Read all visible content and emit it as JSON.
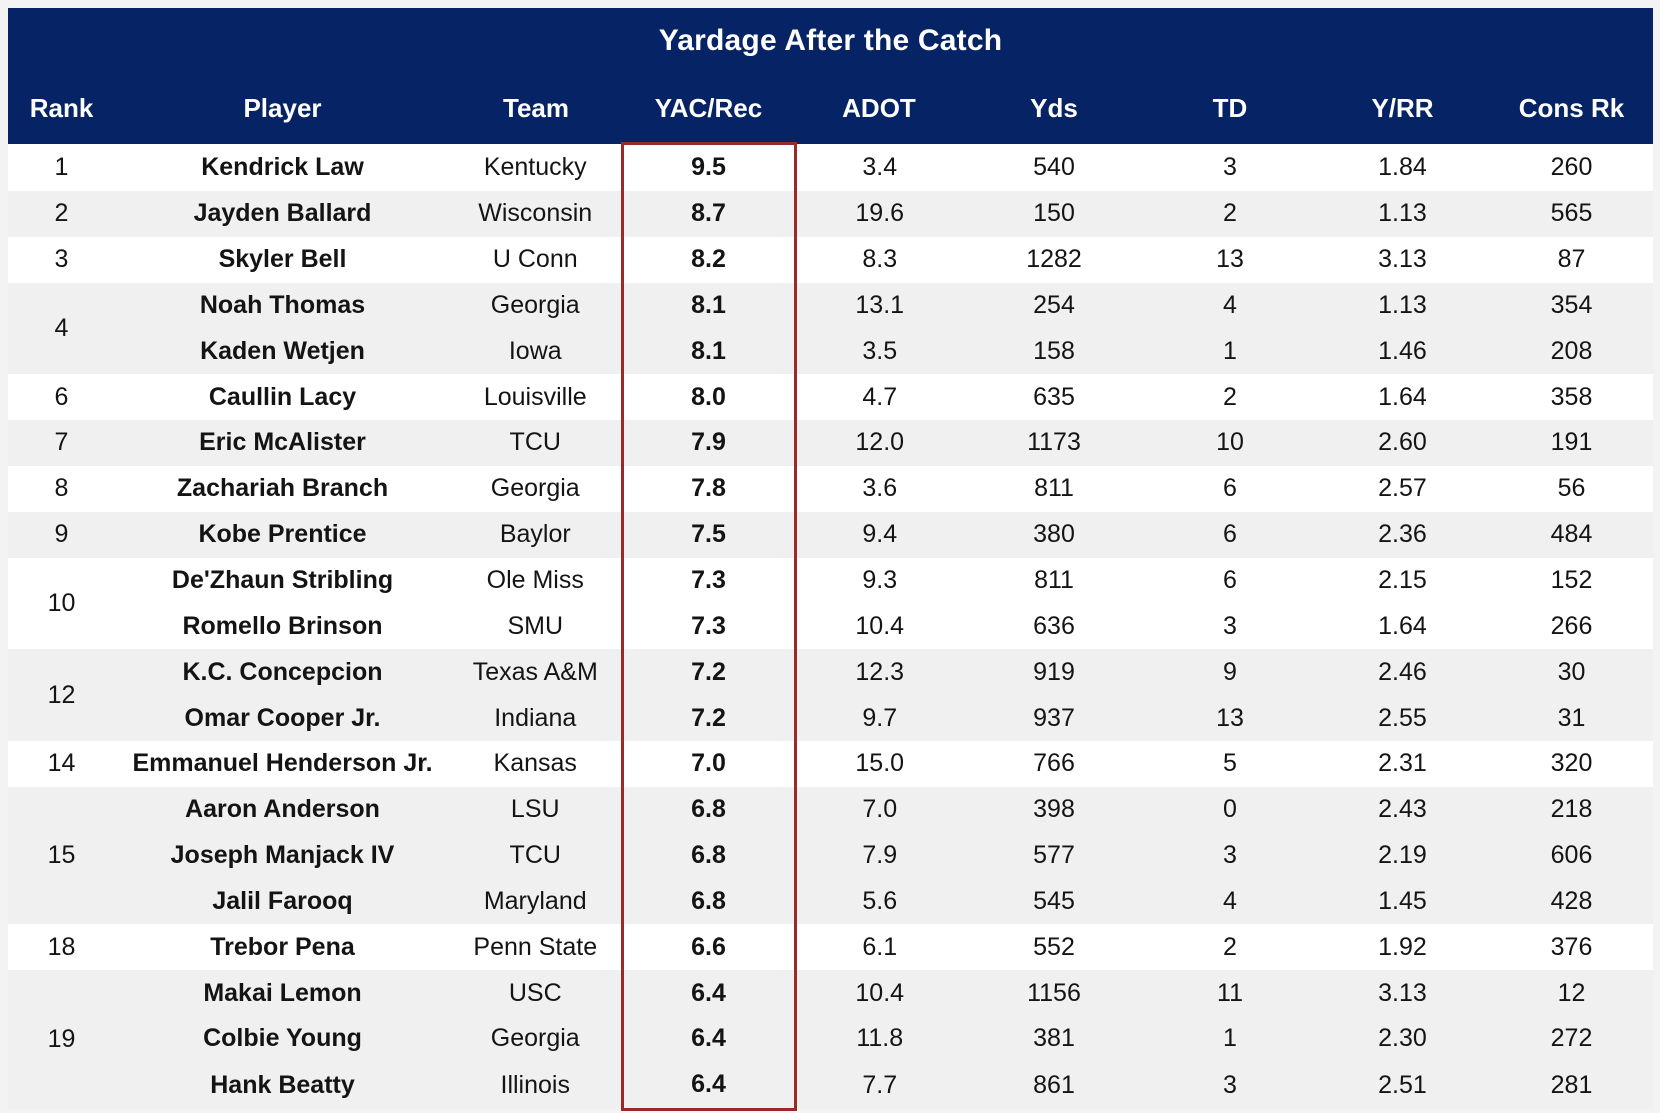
{
  "page": {
    "background": "#f3f3f3"
  },
  "table": {
    "title": "Yardage After the Catch",
    "columns": [
      "Rank",
      "Player",
      "Team",
      "YAC/Rec",
      "ADOT",
      "Yds",
      "TD",
      "Y/RR",
      "Cons Rk"
    ],
    "highlighted_column": "YAC/Rec",
    "colors": {
      "header_bg": "#062465",
      "header_text": "#ffffff",
      "row_white": "#ffffff",
      "row_gray": "#f0f0f0",
      "highlight_border": "#9a2a27",
      "body_text": "#141414"
    },
    "groups": [
      {
        "rank": "1",
        "rows": [
          [
            "Kendrick Law",
            "Kentucky",
            "9.5",
            "3.4",
            "540",
            "3",
            "1.84",
            "260"
          ]
        ]
      },
      {
        "rank": "2",
        "rows": [
          [
            "Jayden Ballard",
            "Wisconsin",
            "8.7",
            "19.6",
            "150",
            "2",
            "1.13",
            "565"
          ]
        ]
      },
      {
        "rank": "3",
        "rows": [
          [
            "Skyler Bell",
            "U Conn",
            "8.2",
            "8.3",
            "1282",
            "13",
            "3.13",
            "87"
          ]
        ]
      },
      {
        "rank": "4",
        "rows": [
          [
            "Noah Thomas",
            "Georgia",
            "8.1",
            "13.1",
            "254",
            "4",
            "1.13",
            "354"
          ],
          [
            "Kaden Wetjen",
            "Iowa",
            "8.1",
            "3.5",
            "158",
            "1",
            "1.46",
            "208"
          ]
        ]
      },
      {
        "rank": "6",
        "rows": [
          [
            "Caullin Lacy",
            "Louisville",
            "8.0",
            "4.7",
            "635",
            "2",
            "1.64",
            "358"
          ]
        ]
      },
      {
        "rank": "7",
        "rows": [
          [
            "Eric McAlister",
            "TCU",
            "7.9",
            "12.0",
            "1173",
            "10",
            "2.60",
            "191"
          ]
        ]
      },
      {
        "rank": "8",
        "rows": [
          [
            "Zachariah Branch",
            "Georgia",
            "7.8",
            "3.6",
            "811",
            "6",
            "2.57",
            "56"
          ]
        ]
      },
      {
        "rank": "9",
        "rows": [
          [
            "Kobe Prentice",
            "Baylor",
            "7.5",
            "9.4",
            "380",
            "6",
            "2.36",
            "484"
          ]
        ]
      },
      {
        "rank": "10",
        "rows": [
          [
            "De'Zhaun Stribling",
            "Ole Miss",
            "7.3",
            "9.3",
            "811",
            "6",
            "2.15",
            "152"
          ],
          [
            "Romello Brinson",
            "SMU",
            "7.3",
            "10.4",
            "636",
            "3",
            "1.64",
            "266"
          ]
        ]
      },
      {
        "rank": "12",
        "rows": [
          [
            "K.C. Concepcion",
            "Texas A&M",
            "7.2",
            "12.3",
            "919",
            "9",
            "2.46",
            "30"
          ],
          [
            "Omar Cooper Jr.",
            "Indiana",
            "7.2",
            "9.7",
            "937",
            "13",
            "2.55",
            "31"
          ]
        ]
      },
      {
        "rank": "14",
        "rows": [
          [
            "Emmanuel Henderson Jr.",
            "Kansas",
            "7.0",
            "15.0",
            "766",
            "5",
            "2.31",
            "320"
          ]
        ]
      },
      {
        "rank": "15",
        "rows": [
          [
            "Aaron Anderson",
            "LSU",
            "6.8",
            "7.0",
            "398",
            "0",
            "2.43",
            "218"
          ],
          [
            "Joseph Manjack IV",
            "TCU",
            "6.8",
            "7.9",
            "577",
            "3",
            "2.19",
            "606"
          ],
          [
            "Jalil Farooq",
            "Maryland",
            "6.8",
            "5.6",
            "545",
            "4",
            "1.45",
            "428"
          ]
        ]
      },
      {
        "rank": "18",
        "rows": [
          [
            "Trebor Pena",
            "Penn State",
            "6.6",
            "6.1",
            "552",
            "2",
            "1.92",
            "376"
          ]
        ]
      },
      {
        "rank": "19",
        "rows": [
          [
            "Makai Lemon",
            "USC",
            "6.4",
            "10.4",
            "1156",
            "11",
            "3.13",
            "12"
          ],
          [
            "Colbie Young",
            "Georgia",
            "6.4",
            "11.8",
            "381",
            "1",
            "2.30",
            "272"
          ],
          [
            "Hank Beatty",
            "Illinois",
            "6.4",
            "7.7",
            "861",
            "3",
            "2.51",
            "281"
          ]
        ]
      }
    ]
  },
  "chart_data": {
    "type": "table",
    "title": "Yardage After the Catch",
    "columns": [
      "Rank",
      "Player",
      "Team",
      "YAC/Rec",
      "ADOT",
      "Yds",
      "TD",
      "Y/RR",
      "Cons Rk"
    ],
    "highlighted_column": "YAC/Rec",
    "rows": [
      [
        1,
        "Kendrick Law",
        "Kentucky",
        9.5,
        3.4,
        540,
        3,
        1.84,
        260
      ],
      [
        2,
        "Jayden Ballard",
        "Wisconsin",
        8.7,
        19.6,
        150,
        2,
        1.13,
        565
      ],
      [
        3,
        "Skyler Bell",
        "U Conn",
        8.2,
        8.3,
        1282,
        13,
        3.13,
        87
      ],
      [
        4,
        "Noah Thomas",
        "Georgia",
        8.1,
        13.1,
        254,
        4,
        1.13,
        354
      ],
      [
        4,
        "Kaden Wetjen",
        "Iowa",
        8.1,
        3.5,
        158,
        1,
        1.46,
        208
      ],
      [
        6,
        "Caullin Lacy",
        "Louisville",
        8.0,
        4.7,
        635,
        2,
        1.64,
        358
      ],
      [
        7,
        "Eric McAlister",
        "TCU",
        7.9,
        12.0,
        1173,
        10,
        2.6,
        191
      ],
      [
        8,
        "Zachariah Branch",
        "Georgia",
        7.8,
        3.6,
        811,
        6,
        2.57,
        56
      ],
      [
        9,
        "Kobe Prentice",
        "Baylor",
        7.5,
        9.4,
        380,
        6,
        2.36,
        484
      ],
      [
        10,
        "De'Zhaun Stribling",
        "Ole Miss",
        7.3,
        9.3,
        811,
        6,
        2.15,
        152
      ],
      [
        10,
        "Romello Brinson",
        "SMU",
        7.3,
        10.4,
        636,
        3,
        1.64,
        266
      ],
      [
        12,
        "K.C. Concepcion",
        "Texas A&M",
        7.2,
        12.3,
        919,
        9,
        2.46,
        30
      ],
      [
        12,
        "Omar Cooper Jr.",
        "Indiana",
        7.2,
        9.7,
        937,
        13,
        2.55,
        31
      ],
      [
        14,
        "Emmanuel Henderson Jr.",
        "Kansas",
        7.0,
        15.0,
        766,
        5,
        2.31,
        320
      ],
      [
        15,
        "Aaron Anderson",
        "LSU",
        6.8,
        7.0,
        398,
        0,
        2.43,
        218
      ],
      [
        15,
        "Joseph Manjack IV",
        "TCU",
        6.8,
        7.9,
        577,
        3,
        2.19,
        606
      ],
      [
        15,
        "Jalil Farooq",
        "Maryland",
        6.8,
        5.6,
        545,
        4,
        1.45,
        428
      ],
      [
        18,
        "Trebor Pena",
        "Penn State",
        6.6,
        6.1,
        552,
        2,
        1.92,
        376
      ],
      [
        19,
        "Makai Lemon",
        "USC",
        6.4,
        10.4,
        1156,
        11,
        3.13,
        12
      ],
      [
        19,
        "Colbie Young",
        "Georgia",
        6.4,
        11.8,
        381,
        1,
        2.3,
        272
      ],
      [
        19,
        "Hank Beatty",
        "Illinois",
        6.4,
        7.7,
        861,
        3,
        2.51,
        281
      ]
    ]
  }
}
